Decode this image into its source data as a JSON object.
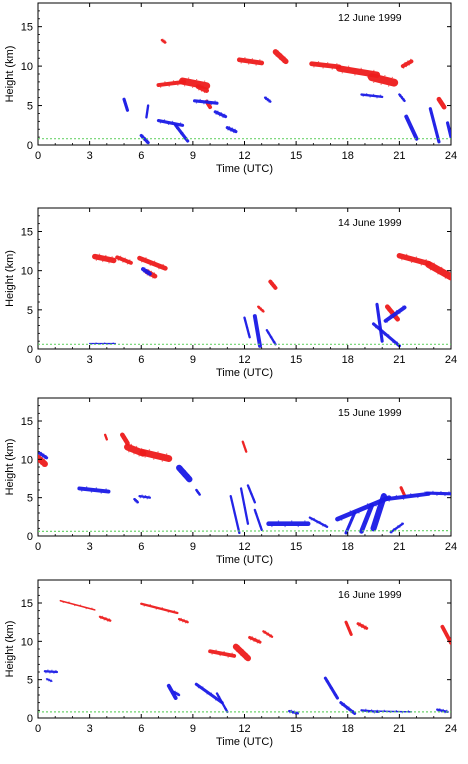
{
  "colors": {
    "red_cloud": "#ee1c1c",
    "blue_cloud": "#1a1ae6",
    "green_ground": "#5fcf5f",
    "frame": "#000000"
  },
  "chart_data": [
    {
      "type": "scatter",
      "title": "12 June 1999",
      "xlabel": "Time (UTC)",
      "ylabel": "Height (km)",
      "xlim": [
        0,
        24
      ],
      "ylim": [
        0,
        18
      ],
      "xticks": [
        "0",
        "3",
        "6",
        "9",
        "12",
        "15",
        "18",
        "21",
        "24"
      ],
      "yticks": [
        "0",
        "5",
        "10",
        "15"
      ],
      "series": [
        {
          "color": "red",
          "segments": [
            [
              7.0,
              7.6,
              8.5,
              8.0,
              0.5
            ],
            [
              8.4,
              8.1,
              9.8,
              7.5,
              0.9
            ],
            [
              9.3,
              7.4,
              9.8,
              6.9,
              0.6
            ],
            [
              9.8,
              5.5,
              10.0,
              4.8,
              0.5
            ],
            [
              11.7,
              10.8,
              13.0,
              10.4,
              0.6
            ],
            [
              13.8,
              11.8,
              14.4,
              10.6,
              0.7
            ],
            [
              15.9,
              10.3,
              17.5,
              9.9,
              0.6
            ],
            [
              17.5,
              9.7,
              19.7,
              8.9,
              0.8
            ],
            [
              19.4,
              8.6,
              20.7,
              7.9,
              1.0
            ],
            [
              21.2,
              10.0,
              21.7,
              10.6,
              0.5
            ],
            [
              23.3,
              5.8,
              23.6,
              4.8,
              0.6
            ],
            [
              7.2,
              13.3,
              7.4,
              13.0,
              0.3
            ]
          ]
        },
        {
          "color": "blue",
          "segments": [
            [
              5.0,
              5.8,
              5.2,
              4.4,
              0.4
            ],
            [
              6.3,
              3.5,
              6.4,
              5.0,
              0.3
            ],
            [
              7.0,
              3.1,
              8.4,
              2.5,
              0.4
            ],
            [
              9.1,
              5.6,
              10.4,
              5.3,
              0.4
            ],
            [
              10.3,
              4.2,
              10.9,
              3.6,
              0.4
            ],
            [
              11.0,
              2.2,
              11.5,
              1.7,
              0.4
            ],
            [
              13.2,
              6.0,
              13.5,
              5.5,
              0.3
            ],
            [
              18.8,
              6.4,
              20.0,
              6.1,
              0.3
            ],
            [
              21.0,
              6.4,
              21.3,
              5.6,
              0.3
            ],
            [
              21.4,
              3.6,
              22.0,
              0.8,
              0.5
            ],
            [
              22.8,
              4.6,
              23.3,
              0.4,
              0.4
            ],
            [
              23.8,
              2.8,
              24.0,
              1.0,
              0.4
            ],
            [
              6.0,
              1.2,
              6.4,
              0.3,
              0.4
            ],
            [
              8.0,
              2.5,
              8.7,
              0.5,
              0.4
            ]
          ]
        },
        {
          "color": "green",
          "segments": [
            [
              0.0,
              0.8,
              24.0,
              0.8,
              0.15
            ]
          ]
        }
      ]
    },
    {
      "type": "scatter",
      "title": "14 June 1999",
      "xlabel": "Time (UTC)",
      "ylabel": "Height (km)",
      "xlim": [
        0,
        24
      ],
      "ylim": [
        0,
        18
      ],
      "xticks": [
        "0",
        "3",
        "6",
        "9",
        "12",
        "15",
        "18",
        "21",
        "24"
      ],
      "yticks": [
        "0",
        "5",
        "10",
        "15"
      ],
      "series": [
        {
          "color": "red",
          "segments": [
            [
              3.3,
              11.8,
              4.4,
              11.3,
              0.7
            ],
            [
              4.6,
              11.7,
              5.4,
              11.0,
              0.5
            ],
            [
              5.9,
              11.6,
              7.4,
              10.3,
              0.6
            ],
            [
              6.3,
              9.9,
              6.8,
              9.3,
              0.6
            ],
            [
              13.5,
              8.6,
              13.8,
              7.8,
              0.5
            ],
            [
              12.8,
              5.4,
              13.1,
              4.8,
              0.3
            ],
            [
              20.3,
              5.4,
              20.9,
              3.8,
              0.6
            ],
            [
              21.0,
              11.9,
              22.7,
              10.9,
              0.7
            ],
            [
              22.7,
              10.8,
              24.0,
              9.2,
              0.9
            ]
          ]
        },
        {
          "color": "blue",
          "segments": [
            [
              6.1,
              10.2,
              6.5,
              9.6,
              0.5
            ],
            [
              12.0,
              4.0,
              12.3,
              1.5,
              0.3
            ],
            [
              12.6,
              4.2,
              12.9,
              0.4,
              0.5
            ],
            [
              13.3,
              2.4,
              13.8,
              0.6,
              0.3
            ],
            [
              19.7,
              5.7,
              20.0,
              1.0,
              0.4
            ],
            [
              20.2,
              3.6,
              21.3,
              5.3,
              0.5
            ],
            [
              19.5,
              3.2,
              21.0,
              0.4,
              0.4
            ],
            [
              3.0,
              0.7,
              4.5,
              0.7,
              0.1
            ]
          ]
        },
        {
          "color": "green",
          "segments": [
            [
              0.0,
              0.6,
              24.0,
              0.6,
              0.15
            ]
          ]
        }
      ]
    },
    {
      "type": "scatter",
      "title": "15 June 1999",
      "xlabel": "Time (UTC)",
      "ylabel": "Height (km)",
      "xlim": [
        0,
        24
      ],
      "ylim": [
        0,
        18
      ],
      "xticks": [
        "0",
        "3",
        "6",
        "9",
        "12",
        "15",
        "18",
        "21",
        "24"
      ],
      "yticks": [
        "0",
        "5",
        "10",
        "15"
      ],
      "series": [
        {
          "color": "red",
          "segments": [
            [
              0.0,
              10.2,
              0.4,
              9.4,
              0.8
            ],
            [
              4.9,
              13.2,
              5.2,
              12.1,
              0.6
            ],
            [
              5.2,
              11.6,
              6.1,
              10.8,
              0.9
            ],
            [
              6.1,
              10.9,
              7.6,
              10.1,
              0.9
            ],
            [
              11.9,
              12.3,
              12.1,
              11.0,
              0.3
            ],
            [
              21.1,
              6.3,
              21.3,
              5.3,
              0.4
            ],
            [
              3.9,
              13.2,
              4.0,
              12.6,
              0.3
            ]
          ]
        },
        {
          "color": "blue",
          "segments": [
            [
              0.1,
              10.8,
              0.5,
              10.2,
              0.4
            ],
            [
              2.4,
              6.2,
              4.1,
              5.8,
              0.5
            ],
            [
              5.9,
              5.2,
              6.5,
              5.0,
              0.3
            ],
            [
              5.6,
              4.8,
              5.8,
              4.4,
              0.3
            ],
            [
              8.2,
              8.9,
              8.8,
              7.4,
              0.8
            ],
            [
              9.2,
              6.0,
              9.4,
              5.4,
              0.3
            ],
            [
              11.2,
              5.2,
              11.7,
              0.4,
              0.3
            ],
            [
              11.8,
              6.2,
              12.2,
              1.6,
              0.3
            ],
            [
              12.2,
              6.6,
              12.6,
              4.4,
              0.3
            ],
            [
              12.6,
              3.4,
              13.0,
              0.8,
              0.3
            ],
            [
              13.4,
              1.6,
              15.7,
              1.6,
              0.6
            ],
            [
              15.8,
              2.4,
              16.8,
              1.2,
              0.3
            ],
            [
              17.4,
              2.2,
              20.4,
              5.0,
              0.6
            ],
            [
              17.9,
              0.4,
              18.4,
              3.0,
              0.4
            ],
            [
              18.8,
              0.6,
              19.4,
              4.0,
              0.6
            ],
            [
              19.5,
              1.0,
              20.1,
              5.2,
              0.8
            ],
            [
              20.2,
              4.8,
              22.7,
              5.5,
              0.5
            ],
            [
              22.6,
              5.6,
              24.0,
              5.5,
              0.4
            ],
            [
              20.5,
              0.5,
              21.2,
              1.6,
              0.3
            ]
          ]
        },
        {
          "color": "green",
          "segments": [
            [
              0.0,
              0.6,
              24.0,
              0.7,
              0.15
            ]
          ]
        }
      ]
    },
    {
      "type": "scatter",
      "title": "16 June 1999",
      "xlabel": "Time (UTC)",
      "ylabel": "Height (km)",
      "xlim": [
        0,
        24
      ],
      "ylim": [
        0,
        18
      ],
      "xticks": [
        "0",
        "3",
        "6",
        "9",
        "12",
        "15",
        "18",
        "21",
        "24"
      ],
      "yticks": [
        "0",
        "5",
        "10",
        "15"
      ],
      "series": [
        {
          "color": "red",
          "segments": [
            [
              1.3,
              15.3,
              3.3,
              14.1,
              0.2
            ],
            [
              3.6,
              13.2,
              4.2,
              12.7,
              0.3
            ],
            [
              6.0,
              14.9,
              8.1,
              13.7,
              0.3
            ],
            [
              8.2,
              12.9,
              8.7,
              12.5,
              0.3
            ],
            [
              10.0,
              8.7,
              11.4,
              8.1,
              0.5
            ],
            [
              11.5,
              9.3,
              12.2,
              7.8,
              0.8
            ],
            [
              12.3,
              10.5,
              12.9,
              9.9,
              0.4
            ],
            [
              13.1,
              11.3,
              13.6,
              10.6,
              0.3
            ],
            [
              17.9,
              12.5,
              18.2,
              10.9,
              0.4
            ],
            [
              18.6,
              12.3,
              19.1,
              11.7,
              0.4
            ],
            [
              23.5,
              11.9,
              24.0,
              9.8,
              0.5
            ]
          ]
        },
        {
          "color": "blue",
          "segments": [
            [
              0.4,
              6.1,
              1.1,
              6.0,
              0.3
            ],
            [
              0.5,
              5.1,
              0.8,
              4.8,
              0.2
            ],
            [
              7.6,
              4.2,
              8.0,
              2.6,
              0.5
            ],
            [
              7.9,
              3.4,
              8.2,
              3.0,
              0.3
            ],
            [
              9.2,
              4.4,
              10.7,
              2.0,
              0.4
            ],
            [
              10.4,
              3.2,
              11.0,
              0.8,
              0.3
            ],
            [
              16.7,
              5.2,
              17.4,
              2.6,
              0.4
            ],
            [
              17.6,
              2.0,
              18.4,
              0.6,
              0.4
            ],
            [
              18.8,
              1.0,
              19.8,
              0.8,
              0.3
            ],
            [
              19.6,
              0.9,
              21.7,
              0.8,
              0.2
            ],
            [
              23.2,
              1.1,
              23.8,
              0.8,
              0.3
            ],
            [
              14.6,
              0.9,
              15.1,
              0.6,
              0.3
            ]
          ]
        },
        {
          "color": "green",
          "segments": [
            [
              0.0,
              0.8,
              24.0,
              0.8,
              0.15
            ]
          ]
        }
      ]
    }
  ]
}
